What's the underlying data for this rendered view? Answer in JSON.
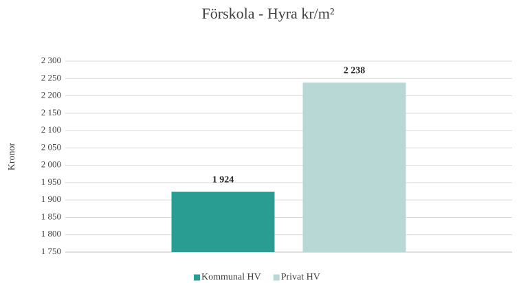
{
  "chart_data": {
    "type": "bar",
    "title": "Förskola - Hyra kr/m²",
    "y_label": "Kronor",
    "categories": [
      null
    ],
    "series": [
      {
        "name": "Kommunal HV",
        "color": "#2a9d92",
        "values": [
          1924
        ],
        "value_labels": [
          "1 924"
        ]
      },
      {
        "name": "Privat HV",
        "color": "#b7d8d5",
        "values": [
          2238
        ],
        "value_labels": [
          "2 238"
        ]
      }
    ],
    "ylim": [
      1750,
      2300
    ],
    "yticks": [
      {
        "value": 1750,
        "label": "1 750"
      },
      {
        "value": 1800,
        "label": "1 800"
      },
      {
        "value": 1850,
        "label": "1 850"
      },
      {
        "value": 1900,
        "label": "1 900"
      },
      {
        "value": 1950,
        "label": "1 950"
      },
      {
        "value": 2000,
        "label": "2 000"
      },
      {
        "value": 2050,
        "label": "2 050"
      },
      {
        "value": 2100,
        "label": "2 100"
      },
      {
        "value": 2150,
        "label": "2 150"
      },
      {
        "value": 2200,
        "label": "2 200"
      },
      {
        "value": 2250,
        "label": "2 250"
      },
      {
        "value": 2300,
        "label": "2 300"
      }
    ],
    "grid": true,
    "legend": "bottom"
  }
}
